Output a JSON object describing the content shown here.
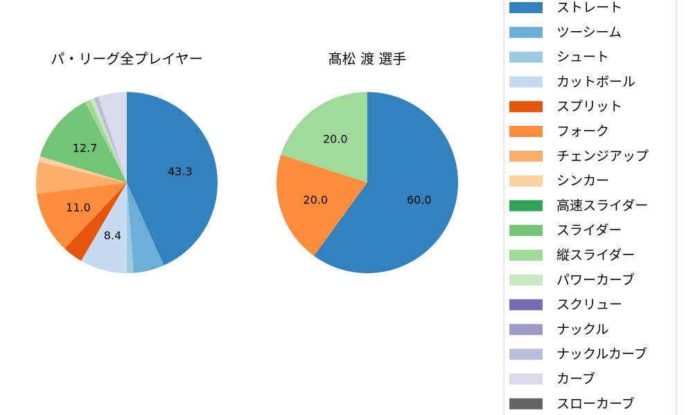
{
  "chart_data": [
    {
      "type": "pie",
      "title": "パ・リーグ全プレイヤー",
      "labels": [
        "ストレート",
        "ツーシーム",
        "シュート",
        "カットボール",
        "スプリット",
        "フォーク",
        "チェンジアップ",
        "シンカー",
        "高速スライダー",
        "スライダー",
        "縦スライダー",
        "パワーカーブ",
        "スクリュー",
        "ナックル",
        "ナックルカーブ",
        "カーブ",
        "スローカーブ"
      ],
      "values": [
        43.3,
        5.5,
        1.2,
        8.4,
        3.6,
        11.0,
        5.7,
        1.0,
        0,
        12.7,
        1.0,
        0.7,
        0,
        0,
        0.8,
        5.1,
        0
      ],
      "data_labels": [
        "43.3",
        "",
        "",
        "8.4",
        "",
        "11.0",
        "",
        "",
        "",
        "12.7",
        "",
        "",
        "",
        "",
        "",
        "",
        ""
      ]
    },
    {
      "type": "pie",
      "title": "髙松 渡  選手",
      "labels": [
        "ストレート",
        "フォーク",
        "縦スライダー"
      ],
      "values": [
        60.0,
        20.0,
        20.0
      ],
      "colors": [
        "#3182bd",
        "#fd8d3c",
        "#a1d99b"
      ],
      "data_labels": [
        "60.0",
        "20.0",
        "20.0"
      ]
    }
  ],
  "legend": {
    "placement": "right",
    "items": [
      {
        "label": "ストレート",
        "color": "#3182bd"
      },
      {
        "label": "ツーシーム",
        "color": "#6baed6"
      },
      {
        "label": "シュート",
        "color": "#9ecae1"
      },
      {
        "label": "カットボール",
        "color": "#c6dbef"
      },
      {
        "label": "スプリット",
        "color": "#e6550d"
      },
      {
        "label": "フォーク",
        "color": "#fd8d3c"
      },
      {
        "label": "チェンジアップ",
        "color": "#fdae6b"
      },
      {
        "label": "シンカー",
        "color": "#fdd0a2"
      },
      {
        "label": "高速スライダー",
        "color": "#31a354"
      },
      {
        "label": "スライダー",
        "color": "#74c476"
      },
      {
        "label": "縦スライダー",
        "color": "#a1d99b"
      },
      {
        "label": "パワーカーブ",
        "color": "#c7e9c0"
      },
      {
        "label": "スクリュー",
        "color": "#756bb1"
      },
      {
        "label": "ナックル",
        "color": "#9e9ac8"
      },
      {
        "label": "ナックルカーブ",
        "color": "#bcbddc"
      },
      {
        "label": "カーブ",
        "color": "#dadaeb"
      },
      {
        "label": "スローカーブ",
        "color": "#636363"
      }
    ]
  }
}
